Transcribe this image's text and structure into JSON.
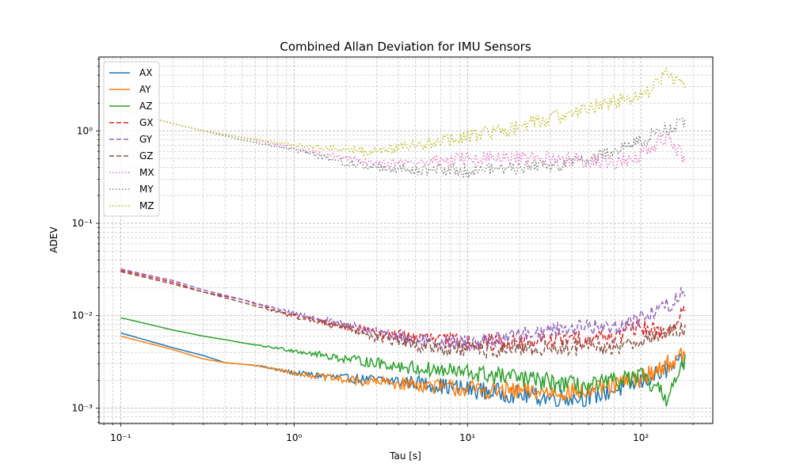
{
  "chart_data": {
    "type": "line",
    "title": "Combined Allan Deviation for IMU Sensors",
    "xlabel": "Tau [s]",
    "ylabel": "ADEV",
    "xscale": "log",
    "yscale": "log",
    "xlim": [
      0.075,
      260
    ],
    "ylim": [
      0.00068,
      6.3
    ],
    "grid": true,
    "legend_position": "top-left",
    "x_tick_labels": [
      "10⁻¹",
      "10⁰",
      "10¹",
      "10²"
    ],
    "y_tick_labels": [
      "10⁻³",
      "10⁻²",
      "10⁻¹",
      "10⁰"
    ],
    "series": [
      {
        "name": "AX",
        "color": "#1f77b4",
        "style": "solid",
        "x": [
          0.1,
          0.2,
          0.3,
          0.4,
          0.6,
          1.0,
          2.0,
          5.0,
          10,
          20,
          30,
          50,
          100,
          180
        ],
        "y": [
          0.0065,
          0.0045,
          0.0037,
          0.0031,
          0.0029,
          0.0024,
          0.0021,
          0.0019,
          0.0016,
          0.0014,
          0.0013,
          0.0013,
          0.0019,
          0.0032
        ],
        "noise": 0.1
      },
      {
        "name": "AY",
        "color": "#ff7f0e",
        "style": "solid",
        "x": [
          0.1,
          0.2,
          0.3,
          0.4,
          0.6,
          1.0,
          2.0,
          5.0,
          10,
          20,
          30,
          50,
          100,
          180
        ],
        "y": [
          0.006,
          0.0043,
          0.0034,
          0.0031,
          0.0029,
          0.0024,
          0.002,
          0.0018,
          0.0016,
          0.0015,
          0.0015,
          0.0015,
          0.0021,
          0.0038
        ],
        "noise": 0.1
      },
      {
        "name": "AZ",
        "color": "#2ca02c",
        "style": "solid",
        "x": [
          0.1,
          0.2,
          0.3,
          0.4,
          0.6,
          1.0,
          2.0,
          5.0,
          10,
          20,
          30,
          50,
          100,
          140,
          180
        ],
        "y": [
          0.0095,
          0.007,
          0.006,
          0.0055,
          0.0048,
          0.0042,
          0.0034,
          0.0027,
          0.0024,
          0.0021,
          0.0019,
          0.0017,
          0.0022,
          0.0013,
          0.003
        ],
        "noise": 0.1
      },
      {
        "name": "GX",
        "color": "#d62728",
        "style": "dashed",
        "x": [
          0.1,
          0.2,
          0.3,
          0.5,
          1.0,
          2.0,
          3.0,
          5.0,
          10,
          20,
          40,
          70,
          100,
          140,
          180
        ],
        "y": [
          0.031,
          0.023,
          0.018,
          0.015,
          0.01,
          0.0075,
          0.0065,
          0.0058,
          0.0052,
          0.0052,
          0.0055,
          0.006,
          0.0075,
          0.0065,
          0.011
        ],
        "noise": 0.09
      },
      {
        "name": "GY",
        "color": "#9467bd",
        "style": "dashed",
        "x": [
          0.1,
          0.2,
          0.3,
          0.5,
          1.0,
          2.0,
          3.0,
          5.0,
          10,
          20,
          40,
          70,
          100,
          150,
          180
        ],
        "y": [
          0.032,
          0.024,
          0.019,
          0.015,
          0.0105,
          0.008,
          0.0065,
          0.0055,
          0.005,
          0.0062,
          0.0075,
          0.0075,
          0.0095,
          0.0135,
          0.019
        ],
        "noise": 0.09
      },
      {
        "name": "GZ",
        "color": "#8c564b",
        "style": "dashed",
        "x": [
          0.1,
          0.2,
          0.3,
          0.5,
          1.0,
          2.0,
          3.0,
          5.0,
          10,
          20,
          40,
          70,
          100,
          150,
          180
        ],
        "y": [
          0.03,
          0.022,
          0.018,
          0.014,
          0.0098,
          0.0075,
          0.0058,
          0.0048,
          0.0042,
          0.0043,
          0.0045,
          0.0045,
          0.0055,
          0.0065,
          0.0075
        ],
        "noise": 0.09
      },
      {
        "name": "MX",
        "color": "#e377c2",
        "style": "dotted",
        "x": [
          0.1,
          0.2,
          0.3,
          0.5,
          1.0,
          2.0,
          3.0,
          5.0,
          10,
          20,
          40,
          70,
          100,
          140,
          180
        ],
        "y": [
          1.7,
          1.2,
          1.0,
          0.85,
          0.65,
          0.5,
          0.45,
          0.45,
          0.5,
          0.5,
          0.5,
          0.45,
          0.55,
          0.85,
          0.5
        ],
        "noise": 0.08
      },
      {
        "name": "MY",
        "color": "#7f7f7f",
        "style": "dotted",
        "x": [
          0.1,
          0.2,
          0.3,
          0.5,
          1.0,
          2.0,
          3.0,
          5.0,
          10,
          20,
          40,
          70,
          100,
          150,
          180
        ],
        "y": [
          1.7,
          1.2,
          1.0,
          0.8,
          0.62,
          0.45,
          0.4,
          0.38,
          0.38,
          0.4,
          0.45,
          0.6,
          0.8,
          1.1,
          1.25
        ],
        "noise": 0.08
      },
      {
        "name": "MZ",
        "color": "#bcbd22",
        "style": "dotted",
        "x": [
          0.1,
          0.2,
          0.3,
          0.5,
          1.0,
          2.0,
          3.0,
          5.0,
          10,
          20,
          40,
          70,
          100,
          140,
          180
        ],
        "y": [
          1.7,
          1.2,
          1.0,
          0.85,
          0.7,
          0.62,
          0.6,
          0.7,
          0.85,
          1.1,
          1.6,
          2.1,
          2.3,
          4.2,
          3.0
        ],
        "noise": 0.08
      }
    ]
  }
}
